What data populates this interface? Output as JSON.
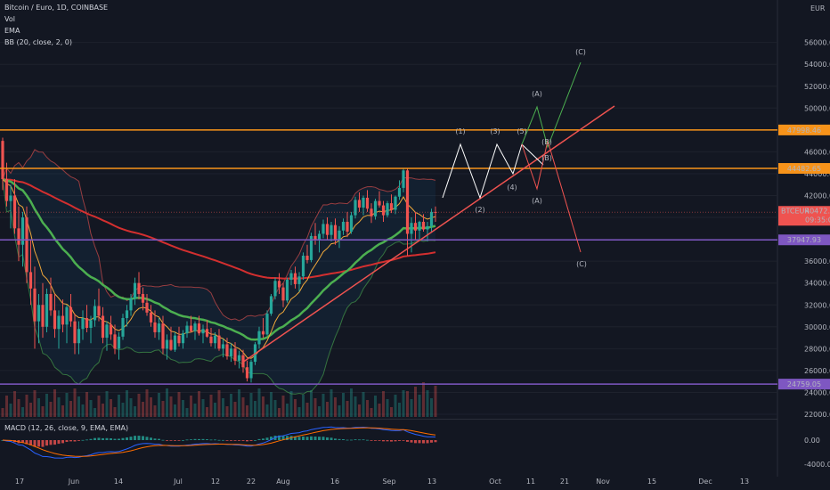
{
  "header": {
    "title": "Bitcoin / Euro, 1D, COINBASE",
    "indicators": [
      "Vol",
      "EMA",
      "BB (20, close, 2, 0)"
    ],
    "currency": "EUR"
  },
  "macd": {
    "label": "MACD (12, 26, close, 9, EMA, EMA)"
  },
  "colors": {
    "background": "#131722",
    "up": "#26a69a",
    "down": "#ef5350",
    "resistance": "#f7931a",
    "support": "#7e57c2",
    "trendline": "#ef5350",
    "ema_green": "#4caf50",
    "ema_orange": "#f0a83a",
    "ema_red": "#d32f2f",
    "wave_white": "#ffffff",
    "wave_green": "#4caf50",
    "wave_red": "#ef5350"
  },
  "chart_data": {
    "type": "candlestick",
    "symbol": "BTCEUR",
    "y_axis": {
      "ticks": [
        "56000.00",
        "54000.00",
        "52000.00",
        "50000.00",
        "48000.00",
        "46000.00",
        "44000.00",
        "42000.00",
        "40000.00",
        "38000.00",
        "36000.00",
        "34000.00",
        "32000.00",
        "30000.00",
        "28000.00",
        "26000.00",
        "24000.00",
        "22000.00"
      ],
      "range": [
        21000,
        57000
      ]
    },
    "macd_axis": {
      "ticks": [
        "0.00",
        "-4000.00"
      ]
    },
    "x_axis": {
      "ticks": [
        "17",
        "Jun",
        "14",
        "Jul",
        "12",
        "22",
        "Aug",
        "16",
        "Sep",
        "13",
        "Oct",
        "11",
        "21",
        "Nov",
        "15",
        "Dec",
        "13"
      ]
    },
    "price_levels": [
      {
        "value": 47998.46,
        "label": "47998.46",
        "kind": "resistance"
      },
      {
        "value": 44482.65,
        "label": "44482.65",
        "kind": "resistance"
      },
      {
        "value": 37947.93,
        "label": "37947.93",
        "kind": "support"
      },
      {
        "value": 24759.05,
        "label": "24759.05",
        "kind": "support"
      }
    ],
    "current_price": {
      "symbol": "BTCEUR",
      "value": "40472.30",
      "countdown": "09:35:02"
    },
    "wave_labels": {
      "white": [
        "(1)",
        "(2)",
        "(3)",
        "(4)",
        "(5)"
      ],
      "green": [
        "(A)",
        "(B)",
        "(C)"
      ],
      "red": [
        "(A)",
        "(B)",
        "(C)"
      ]
    },
    "candles": [
      [
        47000,
        47300,
        42500,
        43500
      ],
      [
        43500,
        45000,
        41000,
        41500
      ],
      [
        41500,
        43000,
        39000,
        42000
      ],
      [
        42000,
        43500,
        38500,
        39000
      ],
      [
        39000,
        41000,
        36000,
        37500
      ],
      [
        37500,
        40500,
        35500,
        40000
      ],
      [
        40000,
        41000,
        34000,
        35000
      ],
      [
        35000,
        38000,
        32000,
        33500
      ],
      [
        33500,
        35500,
        28000,
        30500
      ],
      [
        30500,
        33000,
        28500,
        32000
      ],
      [
        32000,
        34000,
        29000,
        30000
      ],
      [
        30000,
        33500,
        29500,
        33000
      ],
      [
        33000,
        34500,
        31000,
        31500
      ],
      [
        31500,
        33000,
        29000,
        29800
      ],
      [
        29800,
        31500,
        28000,
        31000
      ],
      [
        31000,
        32500,
        29500,
        30200
      ],
      [
        30200,
        32000,
        28500,
        31800
      ],
      [
        31800,
        33000,
        30000,
        30500
      ],
      [
        30500,
        31200,
        27500,
        28500
      ],
      [
        28500,
        30500,
        27500,
        29800
      ],
      [
        29800,
        31500,
        28800,
        30800
      ],
      [
        30800,
        32000,
        29500,
        29900
      ],
      [
        29900,
        31000,
        28500,
        30600
      ],
      [
        30600,
        32500,
        30000,
        31900
      ],
      [
        31900,
        33500,
        30500,
        31000
      ],
      [
        31000,
        31800,
        28500,
        29000
      ],
      [
        29000,
        30500,
        27800,
        30200
      ],
      [
        30200,
        31000,
        28800,
        29300
      ],
      [
        29300,
        30200,
        27500,
        28000
      ],
      [
        28000,
        29500,
        27000,
        29100
      ],
      [
        29100,
        31200,
        28800,
        30800
      ],
      [
        30800,
        32000,
        30000,
        31500
      ],
      [
        31500,
        33000,
        31000,
        32600
      ],
      [
        32600,
        34500,
        32000,
        34000
      ],
      [
        34000,
        35000,
        32500,
        33000
      ],
      [
        33000,
        33600,
        31500,
        32200
      ],
      [
        32200,
        33000,
        31000,
        31300
      ],
      [
        31300,
        32000,
        30000,
        30400
      ],
      [
        30400,
        31500,
        29000,
        29500
      ],
      [
        29500,
        30800,
        28800,
        30300
      ],
      [
        30300,
        31000,
        27500,
        28000
      ],
      [
        28000,
        29300,
        27000,
        28800
      ],
      [
        28800,
        30000,
        27800,
        27900
      ],
      [
        27900,
        29500,
        27700,
        29200
      ],
      [
        29200,
        30000,
        28200,
        28500
      ],
      [
        28500,
        29700,
        28000,
        29400
      ],
      [
        29400,
        30500,
        29000,
        30100
      ],
      [
        30100,
        31000,
        29500,
        29600
      ],
      [
        29600,
        30500,
        28800,
        30300
      ],
      [
        30300,
        31000,
        29200,
        29400
      ],
      [
        29400,
        30200,
        28500,
        29800
      ],
      [
        29800,
        30600,
        29000,
        29100
      ],
      [
        29100,
        29900,
        28200,
        28500
      ],
      [
        28500,
        29500,
        28000,
        29200
      ],
      [
        29200,
        29800,
        27800,
        28000
      ],
      [
        28000,
        28900,
        27200,
        28400
      ],
      [
        28400,
        29000,
        27000,
        27300
      ],
      [
        27300,
        28500,
        26800,
        28000
      ],
      [
        28000,
        28600,
        26500,
        26900
      ],
      [
        26900,
        27800,
        26200,
        27400
      ],
      [
        27400,
        27900,
        25800,
        26300
      ],
      [
        26300,
        26900,
        25000,
        25300
      ],
      [
        25300,
        27000,
        24900,
        26800
      ],
      [
        26800,
        28600,
        26500,
        28400
      ],
      [
        28400,
        30000,
        28000,
        29600
      ],
      [
        29600,
        30800,
        29000,
        29300
      ],
      [
        29300,
        31500,
        29200,
        31200
      ],
      [
        31200,
        33000,
        31000,
        32800
      ],
      [
        32800,
        34500,
        32500,
        34200
      ],
      [
        34200,
        34900,
        33000,
        33600
      ],
      [
        33600,
        34000,
        31800,
        32400
      ],
      [
        32400,
        34500,
        32200,
        34300
      ],
      [
        34300,
        35200,
        33800,
        34900
      ],
      [
        34900,
        35500,
        33500,
        33900
      ],
      [
        33900,
        35000,
        33200,
        34600
      ],
      [
        34600,
        36800,
        34300,
        36500
      ],
      [
        36500,
        37500,
        35800,
        36100
      ],
      [
        36100,
        38600,
        35900,
        38300
      ],
      [
        38300,
        39500,
        37500,
        37900
      ],
      [
        37900,
        38800,
        36800,
        38500
      ],
      [
        38500,
        39800,
        38100,
        39400
      ],
      [
        39400,
        40000,
        38000,
        38400
      ],
      [
        38400,
        39600,
        37800,
        39300
      ],
      [
        39300,
        39900,
        37500,
        37900
      ],
      [
        37900,
        39200,
        37200,
        38800
      ],
      [
        38800,
        39900,
        38400,
        39600
      ],
      [
        39600,
        40500,
        38200,
        38700
      ],
      [
        38700,
        40500,
        38500,
        40200
      ],
      [
        40200,
        41900,
        39900,
        41600
      ],
      [
        41600,
        42300,
        40500,
        40900
      ],
      [
        40900,
        42000,
        40200,
        41800
      ],
      [
        41800,
        42500,
        40500,
        40800
      ],
      [
        40800,
        41300,
        39500,
        40100
      ],
      [
        40100,
        41700,
        39800,
        41500
      ],
      [
        41500,
        42400,
        40900,
        41100
      ],
      [
        41100,
        41500,
        39600,
        40200
      ],
      [
        40200,
        41500,
        40000,
        41300
      ],
      [
        41300,
        42100,
        40400,
        40700
      ],
      [
        40700,
        42000,
        40300,
        41900
      ],
      [
        41900,
        43400,
        41600,
        42700
      ],
      [
        42700,
        44500,
        42300,
        44300
      ],
      [
        44300,
        44500,
        36500,
        38500
      ],
      [
        38500,
        40000,
        36800,
        39500
      ],
      [
        39500,
        40500,
        38000,
        38800
      ],
      [
        38800,
        39700,
        38000,
        39600
      ],
      [
        39600,
        40300,
        38700,
        38900
      ],
      [
        38900,
        39600,
        37800,
        39200
      ],
      [
        39200,
        40800,
        38600,
        40500
      ],
      [
        40500,
        41000,
        39600,
        40472
      ]
    ]
  }
}
